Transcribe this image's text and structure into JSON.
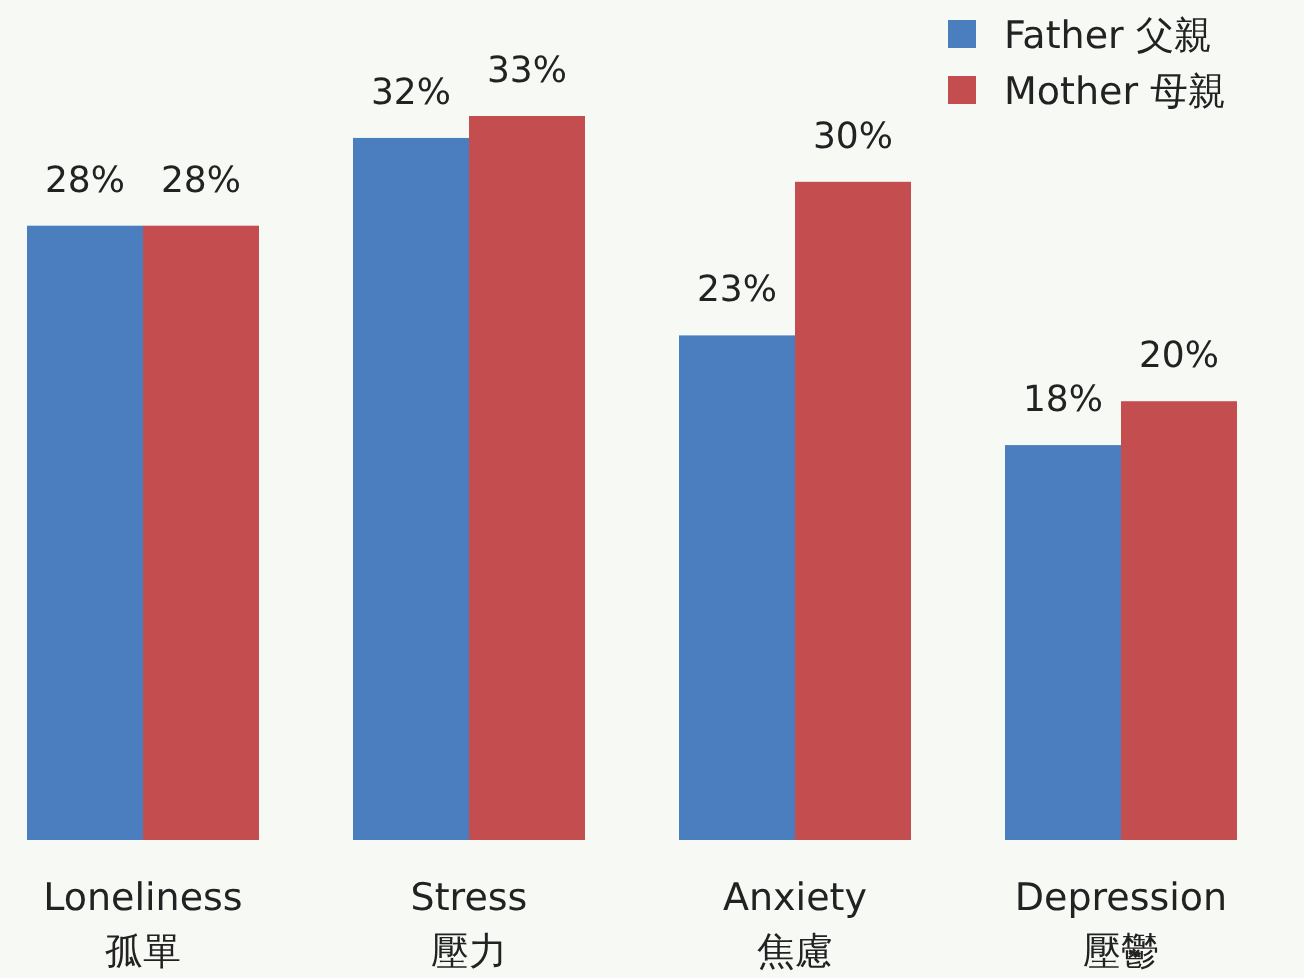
{
  "chart_data": {
    "type": "bar",
    "categories": [
      "Loneliness\n孤單",
      "Stress\n壓力",
      "Anxiety\n焦慮",
      "Depression\n壓鬱"
    ],
    "series": [
      {
        "name": "Father 父親",
        "color": "#4a7ebf",
        "values": [
          28,
          32,
          23,
          18
        ],
        "value_labels": [
          "28%",
          "32%",
          "23%",
          "18%"
        ]
      },
      {
        "name": "Mother 母親",
        "color": "#c44d4f",
        "values": [
          28,
          33,
          30,
          20
        ],
        "value_labels": [
          "28%",
          "33%",
          "30%",
          "20%"
        ]
      }
    ],
    "legend": "top right"
  }
}
